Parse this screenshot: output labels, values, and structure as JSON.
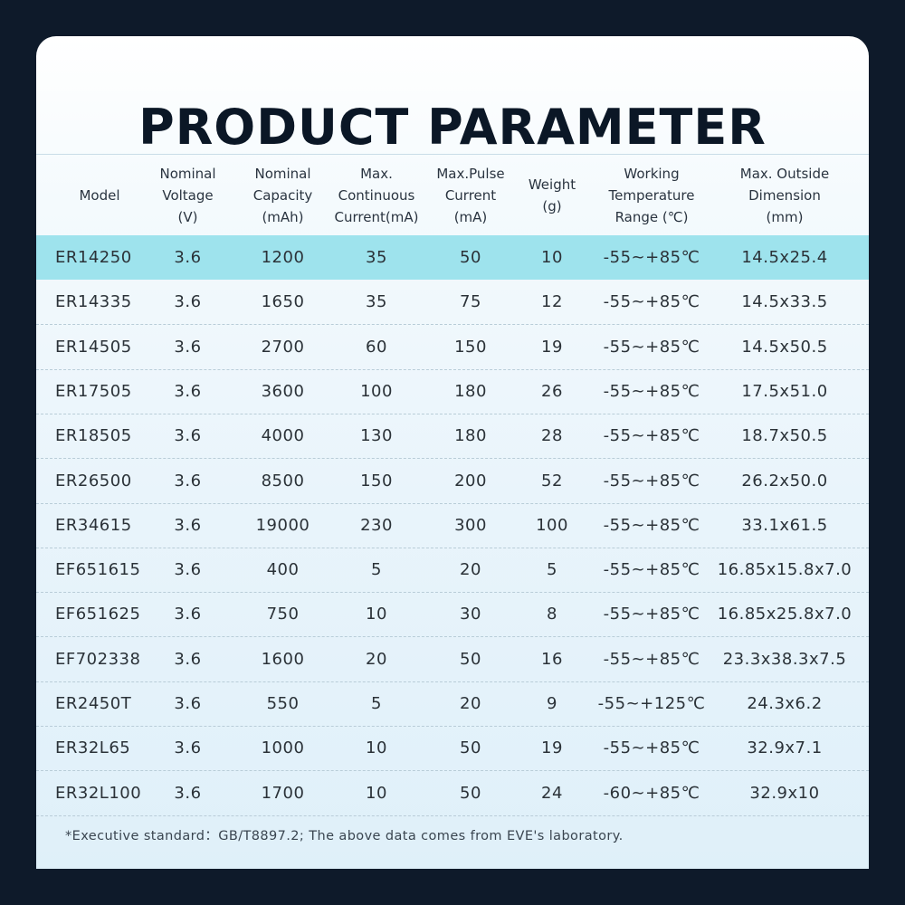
{
  "title": "PRODUCT PARAMETER",
  "columns": [
    "Model",
    "Nominal\nVoltage\n(V)",
    "Nominal\nCapacity\n(mAh)",
    "Max.\nContinuous\nCurrent(mA)",
    "Max.Pulse\nCurrent\n(mA)",
    "Weight\n(g)",
    "Working\nTemperature\nRange (℃)",
    "Max. Outside\nDimension\n(mm)"
  ],
  "rows": [
    [
      "ER14250",
      "3.6",
      "1200",
      "35",
      "50",
      "10",
      "-55~+85℃",
      "14.5x25.4"
    ],
    [
      "ER14335",
      "3.6",
      "1650",
      "35",
      "75",
      "12",
      "-55~+85℃",
      "14.5x33.5"
    ],
    [
      "ER14505",
      "3.6",
      "2700",
      "60",
      "150",
      "19",
      "-55~+85℃",
      "14.5x50.5"
    ],
    [
      "ER17505",
      "3.6",
      "3600",
      "100",
      "180",
      "26",
      "-55~+85℃",
      "17.5x51.0"
    ],
    [
      "ER18505",
      "3.6",
      "4000",
      "130",
      "180",
      "28",
      "-55~+85℃",
      "18.7x50.5"
    ],
    [
      "ER26500",
      "3.6",
      "8500",
      "150",
      "200",
      "52",
      "-55~+85℃",
      "26.2x50.0"
    ],
    [
      "ER34615",
      "3.6",
      "19000",
      "230",
      "300",
      "100",
      "-55~+85℃",
      "33.1x61.5"
    ],
    [
      "EF651615",
      "3.6",
      "400",
      "5",
      "20",
      "5",
      "-55~+85℃",
      "16.85x15.8x7.0"
    ],
    [
      "EF651625",
      "3.6",
      "750",
      "10",
      "30",
      "8",
      "-55~+85℃",
      "16.85x25.8x7.0"
    ],
    [
      "EF702338",
      "3.6",
      "1600",
      "20",
      "50",
      "16",
      "-55~+85℃",
      "23.3x38.3x7.5"
    ],
    [
      "ER2450T",
      "3.6",
      "550",
      "5",
      "20",
      "9",
      "-55~+125℃",
      "24.3x6.2"
    ],
    [
      "ER32L65",
      "3.6",
      "1000",
      "10",
      "50",
      "19",
      "-55~+85℃",
      "32.9x7.1"
    ],
    [
      "ER32L100",
      "3.6",
      "1700",
      "10",
      "50",
      "24",
      "-60~+85℃",
      "32.9x10"
    ]
  ],
  "highlight_row": 0,
  "footnote": "*Executive standard：GB/T8897.2; The above data comes from EVE's laboratory.",
  "colors": {
    "background": "#0e1a2a",
    "highlight": "#9ee3ed",
    "title": "#0b1726"
  }
}
